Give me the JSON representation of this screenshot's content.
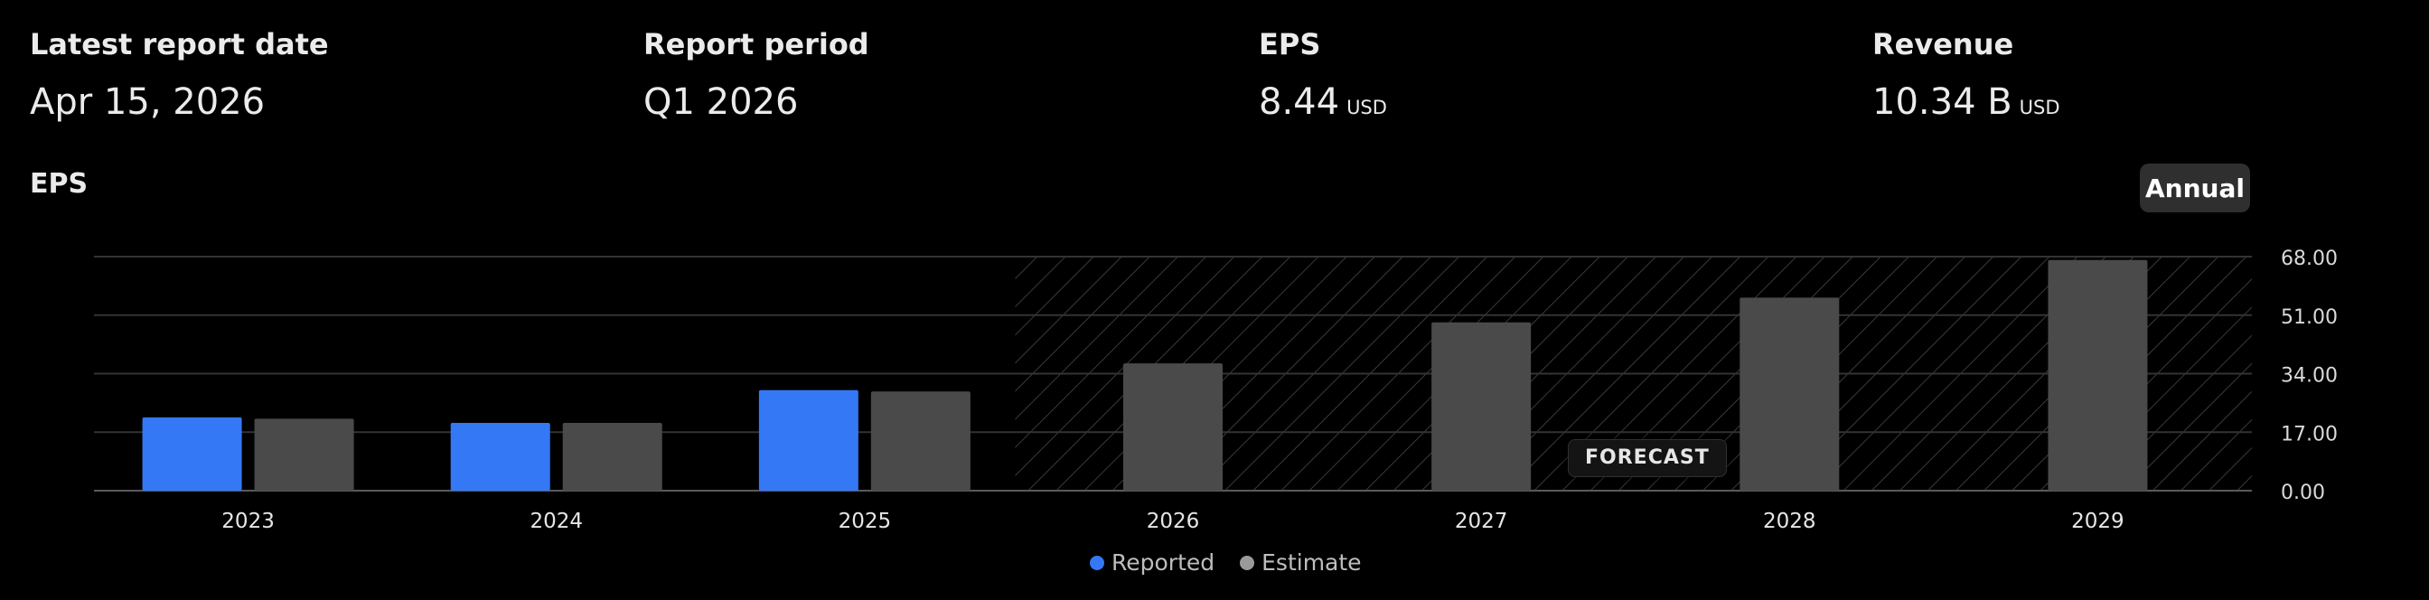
{
  "stats": [
    {
      "label": "Latest report date",
      "value": "Apr 15, 2026",
      "unit": ""
    },
    {
      "label": "Report period",
      "value": "Q1 2026",
      "unit": ""
    },
    {
      "label": "EPS",
      "value": "8.44",
      "unit": "USD"
    },
    {
      "label": "Revenue",
      "value": "10.34 B",
      "unit": "USD"
    }
  ],
  "period_toggle": {
    "label": "Annual"
  },
  "forecast_label": "FORECAST",
  "colors": {
    "reported": "#3478f6",
    "estimate": "#4a4a4a",
    "background": "#000000"
  },
  "chart_data": {
    "type": "bar",
    "title": "EPS",
    "categories": [
      "2023",
      "2024",
      "2025",
      "2026",
      "2027",
      "2028",
      "2029"
    ],
    "series": [
      {
        "name": "Reported",
        "values": [
          21.3,
          19.7,
          29.2,
          null,
          null,
          null,
          null
        ]
      },
      {
        "name": "Estimate",
        "values": [
          20.9,
          19.7,
          28.8,
          37.0,
          48.9,
          56.1,
          67.0
        ]
      }
    ],
    "forecast_categories": [
      "2026",
      "2027",
      "2028",
      "2029"
    ],
    "ylim": [
      0,
      68
    ],
    "yticks": [
      "0.00",
      "17.00",
      "34.00",
      "51.00",
      "68.00"
    ],
    "grid": true,
    "legend": "bottom-center"
  }
}
